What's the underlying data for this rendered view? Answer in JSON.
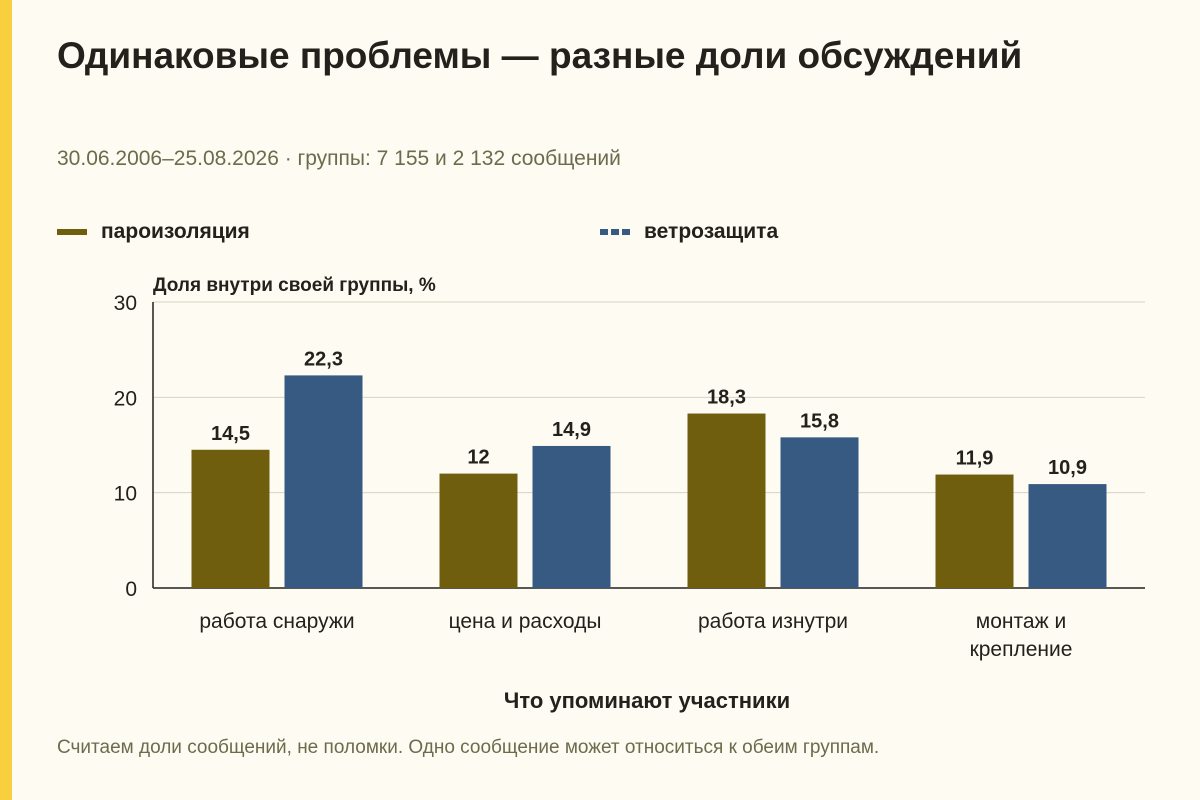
{
  "title": "Одинаковые проблемы — разные доли обсуждений",
  "subtitle": "30.06.2006–25.08.2026 · группы: 7 155 и 2 132 сообщений",
  "footnote": "Считаем доли сообщений, не поломки. Одно сообщение может относиться к обеим группам.",
  "colors": {
    "accent_strip": "#f7cf3f",
    "series_1": "#6e5e0e",
    "series_2": "#375a82",
    "grid": "#d8d4c4",
    "text": "#22211c"
  },
  "chart_data": {
    "type": "bar",
    "ylabel": "Доля внутри своей группы, %",
    "xlabel": "Что упоминают участники",
    "ylim": [
      0,
      30
    ],
    "yticks": [
      0,
      10,
      20,
      30
    ],
    "grid": true,
    "legend_position": "top",
    "categories": [
      [
        "работа снаружи"
      ],
      [
        "цена и расходы"
      ],
      [
        "работа изнутри"
      ],
      [
        "монтаж и",
        "крепление"
      ]
    ],
    "series": [
      {
        "name": "пароизоляция",
        "values": [
          14.5,
          12,
          18.3,
          11.9
        ],
        "labels": [
          "14,5",
          "12",
          "18,3",
          "11,9"
        ],
        "color": "#6e5e0e"
      },
      {
        "name": "ветрозащита",
        "values": [
          22.3,
          14.9,
          15.8,
          10.9
        ],
        "labels": [
          "22,3",
          "14,9",
          "15,8",
          "10,9"
        ],
        "color": "#375a82"
      }
    ]
  }
}
